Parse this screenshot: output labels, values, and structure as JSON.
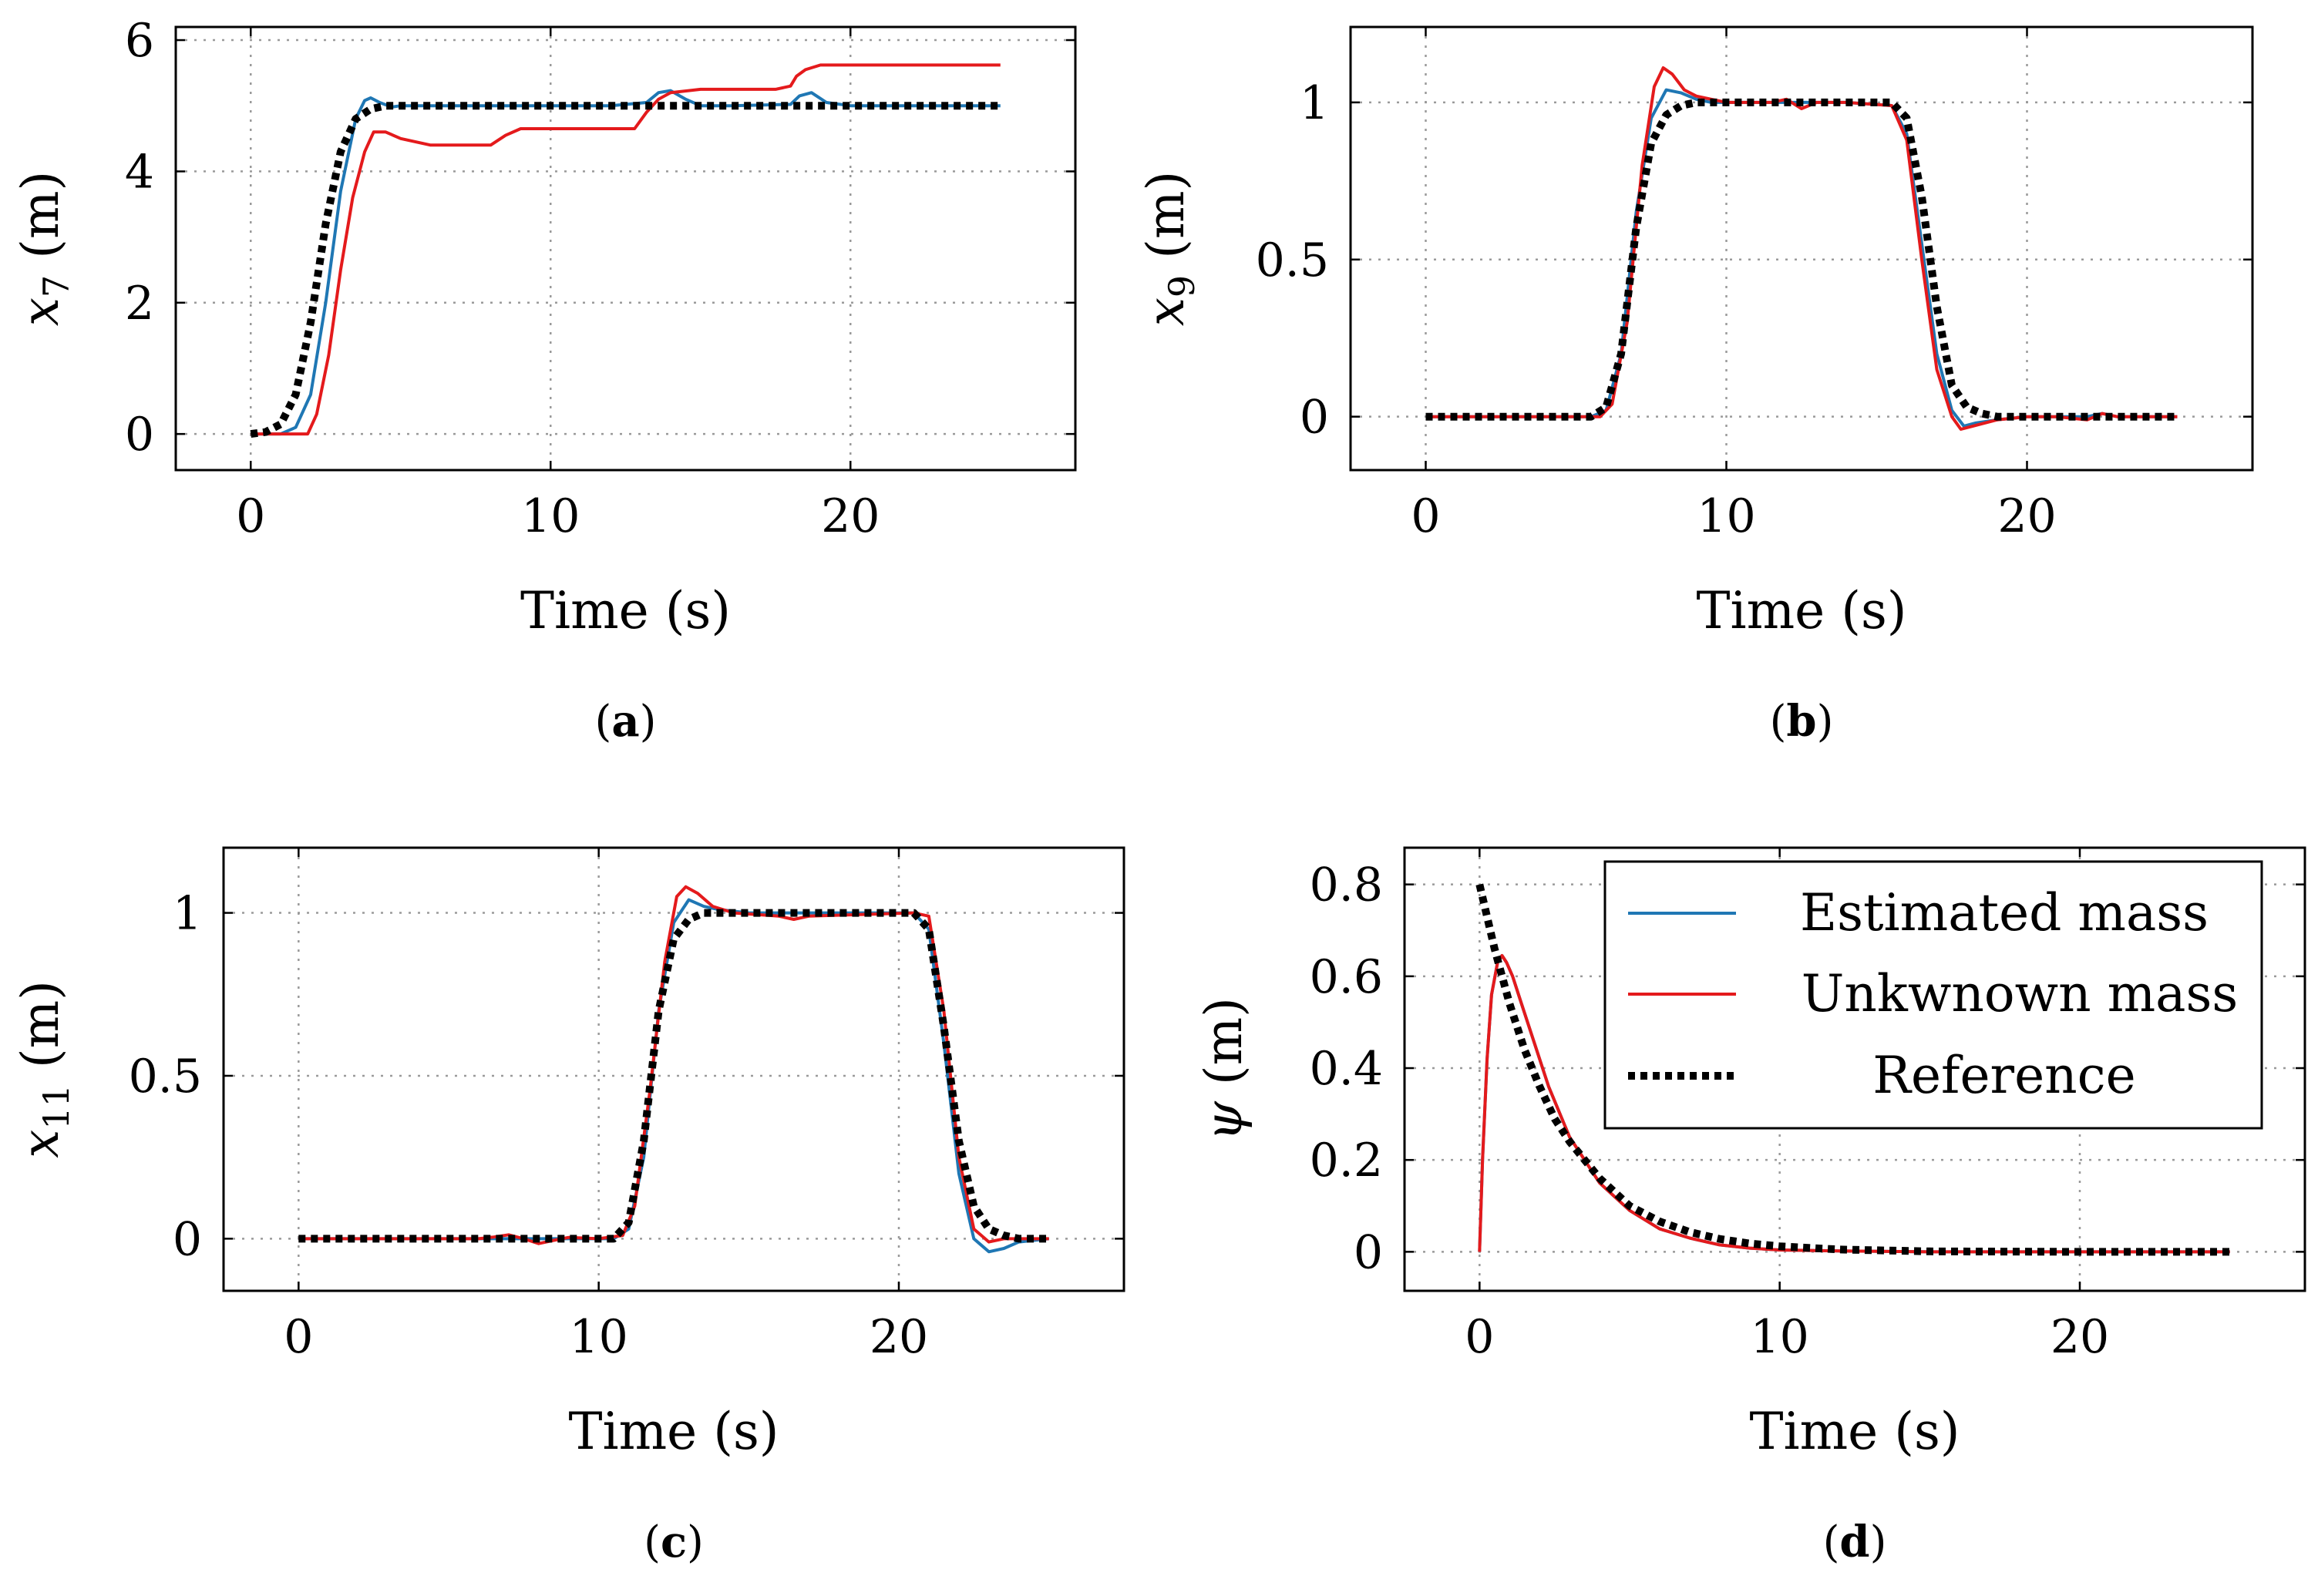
{
  "colors": {
    "estimated": "#1f77b4",
    "unknown": "#e41a1c",
    "reference": "#000000"
  },
  "legend": {
    "estimated": "Estimated mass",
    "unknown": "Unkwnown mass",
    "reference": "Reference"
  },
  "chart_data": [
    {
      "type": "line",
      "panel": "(a)",
      "caption_letter": "a",
      "xlabel": "Time (s)",
      "ylabel_var": "x",
      "ylabel_sub": "7",
      "ylabel_unit": " (m)",
      "xlim": [
        -2.5,
        27.5
      ],
      "ylim": [
        -0.55,
        6.2
      ],
      "xticks": [
        0,
        10,
        20
      ],
      "yticks": [
        0,
        2,
        4,
        6
      ],
      "series": [
        {
          "name": "Estimated mass",
          "key": "estimated",
          "x": [
            0,
            1,
            1.5,
            2,
            2.5,
            3,
            3.5,
            3.8,
            4,
            4.3,
            4.7,
            5,
            5.5,
            6,
            8,
            10,
            12,
            13.2,
            13.6,
            14,
            14.5,
            15,
            16,
            18,
            18.3,
            18.7,
            19.2,
            20,
            25
          ],
          "y": [
            0,
            0,
            0.1,
            0.6,
            2.0,
            3.7,
            4.8,
            5.08,
            5.12,
            5.05,
            4.98,
            5.0,
            5.0,
            5.0,
            5.0,
            5.0,
            5.0,
            5.05,
            5.2,
            5.23,
            5.1,
            5.0,
            5.0,
            5.02,
            5.15,
            5.2,
            5.05,
            5.0,
            5.0
          ]
        },
        {
          "name": "Unkwnown mass",
          "key": "unknown",
          "x": [
            0,
            1.9,
            2.2,
            2.6,
            3,
            3.4,
            3.8,
            4.1,
            4.5,
            5,
            6,
            7,
            8,
            8.5,
            9,
            11,
            12.8,
            13.2,
            13.6,
            14,
            15,
            17,
            17.5,
            18,
            18.2,
            18.5,
            19,
            20,
            25
          ],
          "y": [
            0,
            0,
            0.3,
            1.2,
            2.5,
            3.6,
            4.3,
            4.6,
            4.6,
            4.5,
            4.4,
            4.4,
            4.4,
            4.55,
            4.65,
            4.65,
            4.65,
            4.9,
            5.1,
            5.2,
            5.25,
            5.25,
            5.25,
            5.3,
            5.45,
            5.55,
            5.62,
            5.62,
            5.62
          ]
        },
        {
          "name": "Reference",
          "key": "reference",
          "x": [
            0,
            0.5,
            1,
            1.5,
            2,
            2.5,
            3,
            3.5,
            4,
            4.5,
            5,
            25
          ],
          "y": [
            0,
            0.03,
            0.15,
            0.6,
            1.7,
            3.2,
            4.3,
            4.8,
            4.95,
            5.0,
            5.0,
            5.0
          ]
        }
      ]
    },
    {
      "type": "line",
      "panel": "(b)",
      "caption_letter": "b",
      "xlabel": "Time (s)",
      "ylabel_var": "x",
      "ylabel_sub": "9",
      "ylabel_unit": " (m)",
      "xlim": [
        -2.5,
        27.5
      ],
      "ylim": [
        -0.17,
        1.24
      ],
      "xticks": [
        0,
        10,
        20
      ],
      "yticks": [
        0,
        0.5,
        1
      ],
      "series": [
        {
          "name": "Estimated mass",
          "key": "estimated",
          "x": [
            0,
            5.5,
            6,
            6.5,
            7,
            7.5,
            8,
            8.5,
            9,
            9.5,
            10,
            12,
            14,
            15.5,
            16,
            16.5,
            17,
            17.5,
            17.9,
            18.3,
            19,
            20,
            21,
            22,
            22.5,
            23,
            25
          ],
          "y": [
            0,
            0,
            0.02,
            0.2,
            0.65,
            0.95,
            1.04,
            1.03,
            1.01,
            1.0,
            1.0,
            1.0,
            1.0,
            0.99,
            0.9,
            0.55,
            0.2,
            0.02,
            -0.03,
            -0.02,
            -0.01,
            0,
            0,
            0,
            0.01,
            0,
            0
          ]
        },
        {
          "name": "Unkwnown mass",
          "key": "unknown",
          "x": [
            0,
            5.8,
            6.2,
            6.7,
            7.2,
            7.6,
            7.9,
            8.2,
            8.6,
            9,
            9.5,
            10,
            11,
            11.5,
            12,
            12.5,
            13,
            14,
            15.5,
            16,
            16.5,
            17,
            17.5,
            17.8,
            18.2,
            19,
            20,
            21,
            22,
            22.5,
            23,
            25
          ],
          "y": [
            0,
            0,
            0.04,
            0.3,
            0.8,
            1.05,
            1.11,
            1.09,
            1.04,
            1.02,
            1.01,
            1.0,
            1.0,
            1.0,
            1.01,
            0.98,
            1.0,
            1.0,
            0.99,
            0.88,
            0.5,
            0.15,
            0.0,
            -0.04,
            -0.03,
            -0.01,
            0,
            0,
            -0.01,
            0.01,
            0,
            0
          ]
        },
        {
          "name": "Reference",
          "key": "reference",
          "x": [
            0,
            5.5,
            6,
            6.5,
            7,
            7.5,
            8,
            8.5,
            9,
            10,
            15.5,
            16,
            16.5,
            17,
            17.5,
            18,
            18.5,
            19,
            25
          ],
          "y": [
            0,
            0,
            0.03,
            0.2,
            0.6,
            0.87,
            0.96,
            0.99,
            1.0,
            1.0,
            1.0,
            0.95,
            0.7,
            0.35,
            0.1,
            0.03,
            0.01,
            0,
            0
          ]
        }
      ]
    },
    {
      "type": "line",
      "panel": "(c)",
      "caption_letter": "c",
      "xlabel": "Time (s)",
      "ylabel_var": "x",
      "ylabel_sub": "11",
      "ylabel_unit": " (m)",
      "xlim": [
        -2.5,
        27.5
      ],
      "ylim": [
        -0.16,
        1.2
      ],
      "xticks": [
        0,
        10,
        20
      ],
      "yticks": [
        0,
        0.5,
        1
      ],
      "series": [
        {
          "name": "Estimated mass",
          "key": "estimated",
          "x": [
            0,
            10.5,
            11,
            11.5,
            12,
            12.5,
            13,
            13.5,
            14,
            15,
            20.5,
            21,
            21.5,
            22,
            22.5,
            23,
            23.5,
            24,
            25
          ],
          "y": [
            0,
            0,
            0.03,
            0.25,
            0.7,
            0.97,
            1.04,
            1.02,
            1.01,
            1.0,
            1.0,
            0.95,
            0.6,
            0.2,
            0.0,
            -0.04,
            -0.03,
            -0.01,
            0
          ]
        },
        {
          "name": "Unkwnown mass",
          "key": "unknown",
          "x": [
            0,
            6,
            6.5,
            7,
            7.5,
            8,
            8.5,
            9,
            10,
            10.8,
            11.2,
            11.7,
            12.2,
            12.6,
            12.9,
            13.3,
            13.8,
            14.5,
            16,
            16.5,
            17,
            20.5,
            21,
            21.5,
            22,
            22.5,
            23,
            23.5,
            25
          ],
          "y": [
            0,
            0,
            0.005,
            0.012,
            0.0,
            -0.015,
            -0.005,
            0.004,
            0,
            0.01,
            0.1,
            0.45,
            0.85,
            1.05,
            1.08,
            1.06,
            1.02,
            1.0,
            0.99,
            0.98,
            0.99,
            1.0,
            0.99,
            0.7,
            0.25,
            0.03,
            -0.01,
            0,
            0
          ]
        },
        {
          "name": "Reference",
          "key": "reference",
          "x": [
            0,
            10.5,
            11,
            11.5,
            12,
            12.5,
            13,
            13.5,
            14,
            20.5,
            21,
            21.5,
            22,
            22.5,
            23,
            23.5,
            24,
            25
          ],
          "y": [
            0,
            0,
            0.05,
            0.3,
            0.7,
            0.92,
            0.98,
            1.0,
            1.0,
            1.0,
            0.95,
            0.65,
            0.3,
            0.1,
            0.03,
            0.01,
            0,
            0
          ]
        }
      ]
    },
    {
      "type": "line",
      "panel": "(d)",
      "caption_letter": "d",
      "xlabel": "Time (s)",
      "ylabel_var": "ψ",
      "ylabel_sub": "",
      "ylabel_unit": " (m)",
      "xlim": [
        -2.5,
        27.5
      ],
      "ylim": [
        -0.085,
        0.88
      ],
      "xticks": [
        0,
        10,
        20
      ],
      "yticks": [
        0,
        0.2,
        0.4,
        0.6,
        0.8
      ],
      "legend_position": "top-right",
      "series": [
        {
          "name": "Estimated mass",
          "key": "estimated",
          "x": [
            0,
            0.1,
            0.25,
            0.4,
            0.6,
            0.75,
            0.9,
            1.1,
            1.4,
            1.8,
            2.3,
            3,
            4,
            5,
            6,
            7,
            8,
            9,
            10,
            12,
            15,
            20,
            25
          ],
          "y": [
            0,
            0.2,
            0.42,
            0.56,
            0.63,
            0.645,
            0.63,
            0.6,
            0.54,
            0.46,
            0.36,
            0.25,
            0.15,
            0.09,
            0.05,
            0.03,
            0.015,
            0.008,
            0.004,
            0.002,
            0,
            0,
            0
          ]
        },
        {
          "name": "Unkwnown mass",
          "key": "unknown",
          "x": [
            0,
            0.1,
            0.25,
            0.4,
            0.6,
            0.75,
            0.9,
            1.1,
            1.4,
            1.8,
            2.3,
            3,
            4,
            5,
            6,
            7,
            8,
            9,
            10,
            12,
            15,
            20,
            25
          ],
          "y": [
            0,
            0.2,
            0.42,
            0.56,
            0.63,
            0.645,
            0.63,
            0.6,
            0.54,
            0.46,
            0.36,
            0.25,
            0.15,
            0.09,
            0.05,
            0.03,
            0.015,
            0.008,
            0.004,
            0.002,
            0,
            0,
            0
          ]
        },
        {
          "name": "Reference",
          "key": "reference",
          "x": [
            0,
            0.5,
            1,
            1.5,
            2,
            2.5,
            3,
            4,
            5,
            6,
            7,
            8,
            9,
            10,
            12,
            15,
            20,
            25
          ],
          "y": [
            0.8,
            0.66,
            0.54,
            0.44,
            0.36,
            0.29,
            0.24,
            0.16,
            0.1,
            0.066,
            0.043,
            0.028,
            0.018,
            0.012,
            0.005,
            0.001,
            0,
            0
          ]
        }
      ]
    }
  ]
}
